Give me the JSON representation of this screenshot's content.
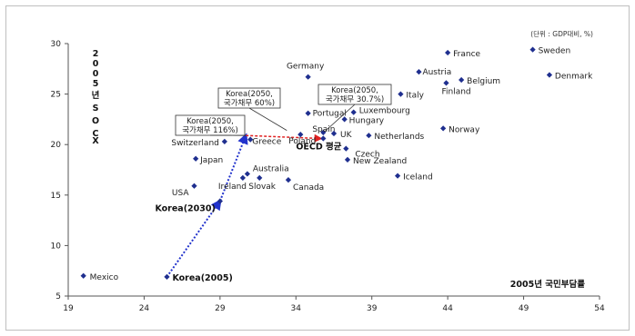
{
  "chart_data": {
    "type": "scatter",
    "unit_note": "(단위 : GDP대비, %)",
    "xlabel": "2005년 국민부담률",
    "ylabel": "2005년 SOCX",
    "xlim": [
      19,
      54
    ],
    "ylim": [
      5,
      30
    ],
    "xticks": [
      19,
      24,
      29,
      34,
      39,
      44,
      49,
      54
    ],
    "yticks": [
      5,
      10,
      15,
      20,
      25,
      30
    ],
    "grid": false,
    "points": [
      {
        "label": "France",
        "x": 44.0,
        "y": 29.1
      },
      {
        "label": "Sweden",
        "x": 49.6,
        "y": 29.4
      },
      {
        "label": "Austria",
        "x": 42.1,
        "y": 27.2
      },
      {
        "label": "Denmark",
        "x": 50.7,
        "y": 26.9
      },
      {
        "label": "Belgium",
        "x": 44.9,
        "y": 26.4
      },
      {
        "label": "Finland",
        "x": 43.9,
        "y": 26.1
      },
      {
        "label": "Germany",
        "x": 34.8,
        "y": 26.7
      },
      {
        "label": "Italy",
        "x": 40.9,
        "y": 25.0
      },
      {
        "label": "Luxembourg",
        "x": 37.8,
        "y": 23.2
      },
      {
        "label": "Portugal",
        "x": 34.8,
        "y": 23.1
      },
      {
        "label": "Hungary",
        "x": 37.2,
        "y": 22.5
      },
      {
        "label": "Norway",
        "x": 43.7,
        "y": 21.6
      },
      {
        "label": "Spain",
        "x": 35.8,
        "y": 21.2
      },
      {
        "label": "Poland",
        "x": 34.3,
        "y": 21.0
      },
      {
        "label": "UK",
        "x": 36.5,
        "y": 21.1
      },
      {
        "label": "Netherlands",
        "x": 38.8,
        "y": 20.9
      },
      {
        "label": "Greece",
        "x": 31.0,
        "y": 20.5
      },
      {
        "label": "OECD 평균",
        "x": 35.8,
        "y": 20.6
      },
      {
        "label": "Switzerland",
        "x": 29.3,
        "y": 20.3
      },
      {
        "label": "Czech",
        "x": 37.3,
        "y": 19.6
      },
      {
        "label": "Japan",
        "x": 27.4,
        "y": 18.6
      },
      {
        "label": "New Zealand",
        "x": 37.4,
        "y": 18.5
      },
      {
        "label": "Australia",
        "x": 30.8,
        "y": 17.1
      },
      {
        "label": "Iceland",
        "x": 40.7,
        "y": 16.9
      },
      {
        "label": "Ireland",
        "x": 30.5,
        "y": 16.7
      },
      {
        "label": "Slovak",
        "x": 31.6,
        "y": 16.7
      },
      {
        "label": "Canada",
        "x": 33.5,
        "y": 16.5
      },
      {
        "label": "USA",
        "x": 27.3,
        "y": 15.9
      },
      {
        "label": "Mexico",
        "x": 20.0,
        "y": 7.0
      },
      {
        "label": "Korea(2005)",
        "x": 25.5,
        "y": 6.9
      },
      {
        "label": "Korea(2030)",
        "x": 29.0,
        "y": 14.4
      }
    ],
    "korea_path": [
      {
        "x": 25.5,
        "y": 6.9
      },
      {
        "x": 29.0,
        "y": 14.4
      },
      {
        "x": 30.7,
        "y": 20.9
      }
    ],
    "dashed_link": [
      {
        "x": 30.7,
        "y": 20.9
      },
      {
        "x": 35.8,
        "y": 20.6
      }
    ],
    "callouts": [
      {
        "lines": [
          "Korea(2050,",
          "국가채무 116%)"
        ]
      },
      {
        "lines": [
          "Korea(2050,",
          "국가채무 60%)"
        ]
      },
      {
        "lines": [
          "Korea(2050,",
          "국가채무 30.7%)"
        ]
      }
    ],
    "colors": {
      "marker": "#1f2f8f",
      "korea_line": "#2233cc",
      "dashed": "#e02020",
      "axis": "#555555"
    }
  }
}
